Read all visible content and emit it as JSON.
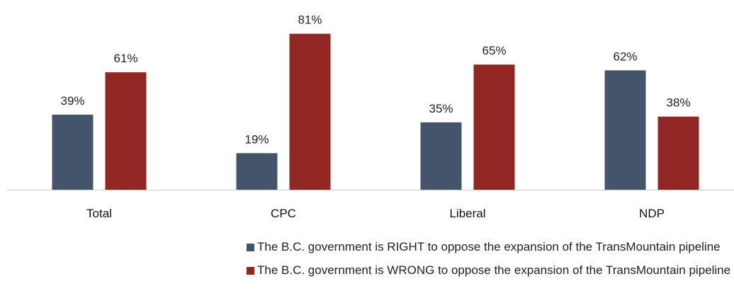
{
  "chart_data": {
    "type": "bar",
    "categories": [
      "Total",
      "CPC",
      "Liberal",
      "NDP"
    ],
    "series": [
      {
        "name": "The B.C. government is RIGHT to oppose the expansion of the TransMountain pipeline",
        "values": [
          39,
          19,
          35,
          62
        ],
        "labels": [
          "39%",
          "19%",
          "35%",
          "62%"
        ],
        "color": "#44546a"
      },
      {
        "name": "The B.C. government is WRONG to oppose the expansion of the TransMountain pipeline",
        "values": [
          61,
          81,
          65,
          38
        ],
        "labels": [
          "61%",
          "81%",
          "65%",
          "38%"
        ],
        "color": "#922723"
      }
    ],
    "unit": "%",
    "ylim": [
      0,
      100
    ],
    "grid": false,
    "legend_position": "bottom"
  }
}
